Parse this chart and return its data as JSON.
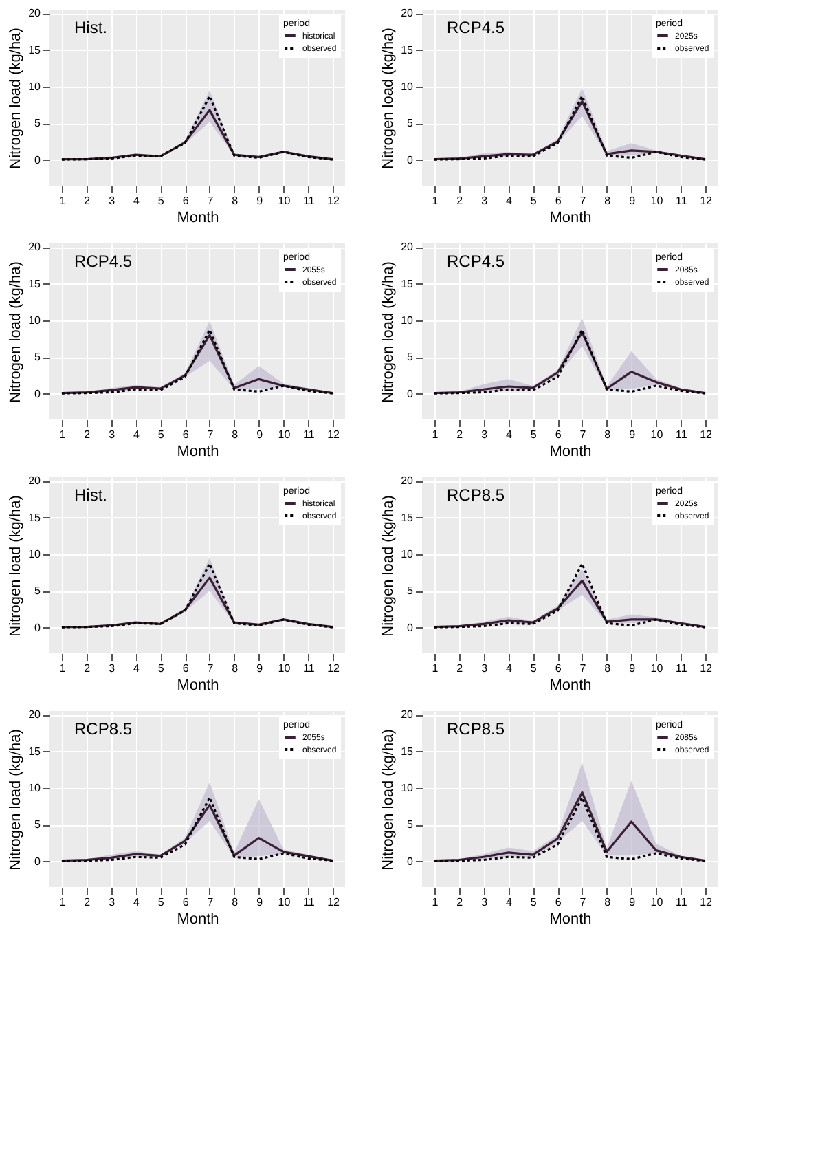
{
  "chart_data": [
    {
      "type": "line",
      "annotations": [
        "Hist."
      ],
      "xlabel": "Month",
      "ylabel": "Nitrogen load (kg/ha)",
      "legend_title": "period",
      "legend": "top right",
      "grid": true,
      "x": [
        1,
        2,
        3,
        4,
        5,
        6,
        7,
        8,
        9,
        10,
        11,
        12
      ],
      "xlim": [
        0.5,
        12.5
      ],
      "xticks": [
        1,
        2,
        3,
        4,
        5,
        6,
        7,
        8,
        9,
        10,
        11,
        12
      ],
      "ylim": [
        -3.5,
        20.5
      ],
      "yticks": [
        0,
        5,
        10,
        15,
        20
      ],
      "series": [
        {
          "name": "historical",
          "color": "#3a1f35",
          "line_style": "solid",
          "values": [
            0.1,
            0.1,
            0.3,
            0.7,
            0.5,
            2.4,
            6.8,
            0.7,
            0.4,
            1.1,
            0.5,
            0.1
          ],
          "lower": [
            0,
            0.1,
            0.2,
            0.6,
            0.4,
            2.2,
            5.2,
            0.6,
            0.3,
            1.0,
            0.4,
            0
          ],
          "upper": [
            0.1,
            0.2,
            0.4,
            0.8,
            0.6,
            2.6,
            9.5,
            0.8,
            0.5,
            1.2,
            0.6,
            0.1
          ]
        },
        {
          "name": "observed",
          "color": "#000000",
          "line_style": "dotted",
          "values": [
            0.05,
            0.1,
            0.2,
            0.6,
            0.5,
            2.3,
            8.7,
            0.6,
            0.3,
            1.1,
            0.4,
            0.05
          ]
        }
      ]
    },
    {
      "type": "line",
      "annotations": [
        "RCP4.5"
      ],
      "xlabel": "Month",
      "ylabel": "Nitrogen load (kg/ha)",
      "legend_title": "period",
      "legend": "top right",
      "grid": true,
      "x": [
        1,
        2,
        3,
        4,
        5,
        6,
        7,
        8,
        9,
        10,
        11,
        12
      ],
      "xlim": [
        0.5,
        12.5
      ],
      "xticks": [
        1,
        2,
        3,
        4,
        5,
        6,
        7,
        8,
        9,
        10,
        11,
        12
      ],
      "ylim": [
        -3.5,
        20.5
      ],
      "yticks": [
        0,
        5,
        10,
        15,
        20
      ],
      "series": [
        {
          "name": "2025s",
          "color": "#3a1f35",
          "line_style": "solid",
          "values": [
            0.1,
            0.2,
            0.5,
            0.8,
            0.7,
            2.5,
            8.0,
            0.8,
            1.3,
            1.1,
            0.6,
            0.1
          ],
          "lower": [
            0,
            0.1,
            0.3,
            0.5,
            0.5,
            2.3,
            6.0,
            0.6,
            0.6,
            0.9,
            0.5,
            0
          ],
          "upper": [
            0.2,
            0.3,
            0.9,
            1.1,
            0.8,
            2.8,
            9.8,
            1.2,
            2.3,
            1.3,
            0.7,
            0.2
          ]
        },
        {
          "name": "observed",
          "color": "#000000",
          "line_style": "dotted",
          "values": [
            0.05,
            0.1,
            0.2,
            0.6,
            0.5,
            2.3,
            8.7,
            0.6,
            0.3,
            1.1,
            0.4,
            0.05
          ]
        }
      ]
    },
    {
      "type": "line",
      "annotations": [
        "RCP4.5"
      ],
      "xlabel": "Month",
      "ylabel": "Nitrogen load (kg/ha)",
      "legend_title": "period",
      "legend": "top right",
      "grid": true,
      "x": [
        1,
        2,
        3,
        4,
        5,
        6,
        7,
        8,
        9,
        10,
        11,
        12
      ],
      "xlim": [
        0.5,
        12.5
      ],
      "xticks": [
        1,
        2,
        3,
        4,
        5,
        6,
        7,
        8,
        9,
        10,
        11,
        12
      ],
      "ylim": [
        -3.5,
        20.5
      ],
      "yticks": [
        0,
        5,
        10,
        15,
        20
      ],
      "series": [
        {
          "name": "2055s",
          "color": "#3a1f35",
          "line_style": "solid",
          "values": [
            0.1,
            0.2,
            0.5,
            0.9,
            0.7,
            2.5,
            8.0,
            0.8,
            2.0,
            1.1,
            0.6,
            0.1
          ],
          "lower": [
            0,
            0.1,
            0.3,
            0.6,
            0.6,
            2.3,
            4.5,
            0.6,
            0.6,
            0.9,
            0.5,
            0
          ],
          "upper": [
            0.2,
            0.3,
            0.8,
            1.2,
            0.9,
            2.8,
            9.9,
            1.2,
            3.8,
            1.4,
            0.8,
            0.2
          ]
        },
        {
          "name": "observed",
          "color": "#000000",
          "line_style": "dotted",
          "values": [
            0.05,
            0.1,
            0.2,
            0.6,
            0.5,
            2.3,
            8.7,
            0.6,
            0.3,
            1.1,
            0.4,
            0.05
          ]
        }
      ]
    },
    {
      "type": "line",
      "annotations": [
        "RCP4.5"
      ],
      "xlabel": "Month",
      "ylabel": "Nitrogen load (kg/ha)",
      "legend_title": "period",
      "legend": "top right",
      "grid": true,
      "x": [
        1,
        2,
        3,
        4,
        5,
        6,
        7,
        8,
        9,
        10,
        11,
        12
      ],
      "xlim": [
        0.5,
        12.5
      ],
      "xticks": [
        1,
        2,
        3,
        4,
        5,
        6,
        7,
        8,
        9,
        10,
        11,
        12
      ],
      "ylim": [
        -3.5,
        20.5
      ],
      "yticks": [
        0,
        5,
        10,
        15,
        20
      ],
      "series": [
        {
          "name": "2085s",
          "color": "#3a1f35",
          "line_style": "solid",
          "values": [
            0.1,
            0.2,
            0.6,
            1.0,
            0.8,
            2.9,
            8.4,
            0.7,
            3.0,
            1.6,
            0.6,
            0.1
          ],
          "lower": [
            0,
            0.1,
            0.3,
            0.4,
            0.6,
            2.5,
            6.5,
            0.5,
            0.7,
            1.2,
            0.5,
            0
          ],
          "upper": [
            0.2,
            0.3,
            1.3,
            2.0,
            1.1,
            3.2,
            10.3,
            1.0,
            5.8,
            2.0,
            0.8,
            0.2
          ]
        },
        {
          "name": "observed",
          "color": "#000000",
          "line_style": "dotted",
          "values": [
            0.05,
            0.1,
            0.2,
            0.6,
            0.5,
            2.3,
            8.7,
            0.6,
            0.3,
            1.1,
            0.4,
            0.05
          ]
        }
      ]
    },
    {
      "type": "line",
      "annotations": [
        "Hist."
      ],
      "xlabel": "Month",
      "ylabel": "Nitrogen load (kg/ha)",
      "legend_title": "period",
      "legend": "top right",
      "grid": true,
      "x": [
        1,
        2,
        3,
        4,
        5,
        6,
        7,
        8,
        9,
        10,
        11,
        12
      ],
      "xlim": [
        0.5,
        12.5
      ],
      "xticks": [
        1,
        2,
        3,
        4,
        5,
        6,
        7,
        8,
        9,
        10,
        11,
        12
      ],
      "ylim": [
        -3.5,
        20.5
      ],
      "yticks": [
        0,
        5,
        10,
        15,
        20
      ],
      "series": [
        {
          "name": "historical",
          "color": "#3a1f35",
          "line_style": "solid",
          "values": [
            0.1,
            0.1,
            0.3,
            0.7,
            0.5,
            2.4,
            6.8,
            0.7,
            0.4,
            1.1,
            0.5,
            0.1
          ],
          "lower": [
            0,
            0.1,
            0.2,
            0.6,
            0.4,
            2.2,
            5.0,
            0.6,
            0.3,
            1.0,
            0.4,
            0
          ],
          "upper": [
            0.1,
            0.2,
            0.4,
            0.8,
            0.6,
            2.6,
            9.5,
            0.8,
            0.5,
            1.3,
            0.6,
            0.1
          ]
        },
        {
          "name": "observed",
          "color": "#000000",
          "line_style": "dotted",
          "values": [
            0.05,
            0.1,
            0.2,
            0.6,
            0.5,
            2.3,
            8.7,
            0.6,
            0.3,
            1.1,
            0.4,
            0.05
          ]
        }
      ]
    },
    {
      "type": "line",
      "annotations": [
        "RCP8.5"
      ],
      "xlabel": "Month",
      "ylabel": "Nitrogen load (kg/ha)",
      "legend_title": "period",
      "legend": "top right",
      "grid": true,
      "x": [
        1,
        2,
        3,
        4,
        5,
        6,
        7,
        8,
        9,
        10,
        11,
        12
      ],
      "xlim": [
        0.5,
        12.5
      ],
      "xticks": [
        1,
        2,
        3,
        4,
        5,
        6,
        7,
        8,
        9,
        10,
        11,
        12
      ],
      "ylim": [
        -3.5,
        20.5
      ],
      "yticks": [
        0,
        5,
        10,
        15,
        20
      ],
      "series": [
        {
          "name": "2025s",
          "color": "#3a1f35",
          "line_style": "solid",
          "values": [
            0.1,
            0.2,
            0.5,
            1.0,
            0.7,
            2.6,
            6.4,
            0.8,
            1.1,
            1.1,
            0.6,
            0.1
          ],
          "lower": [
            0,
            0.1,
            0.3,
            0.6,
            0.5,
            2.3,
            4.5,
            0.6,
            0.6,
            0.9,
            0.5,
            0
          ],
          "upper": [
            0.2,
            0.3,
            0.8,
            1.5,
            0.9,
            3.0,
            8.0,
            1.1,
            1.8,
            1.4,
            0.7,
            0.2
          ]
        },
        {
          "name": "observed",
          "color": "#000000",
          "line_style": "dotted",
          "values": [
            0.05,
            0.1,
            0.2,
            0.6,
            0.5,
            2.3,
            8.7,
            0.6,
            0.3,
            1.1,
            0.4,
            0.05
          ]
        }
      ]
    },
    {
      "type": "line",
      "annotations": [
        "RCP8.5"
      ],
      "xlabel": "Month",
      "ylabel": "Nitrogen load (kg/ha)",
      "legend_title": "period",
      "legend": "top right",
      "grid": true,
      "x": [
        1,
        2,
        3,
        4,
        5,
        6,
        7,
        8,
        9,
        10,
        11,
        12
      ],
      "xlim": [
        0.5,
        12.5
      ],
      "xticks": [
        1,
        2,
        3,
        4,
        5,
        6,
        7,
        8,
        9,
        10,
        11,
        12
      ],
      "ylim": [
        -3.5,
        20.5
      ],
      "yticks": [
        0,
        5,
        10,
        15,
        20
      ],
      "series": [
        {
          "name": "2055s",
          "color": "#3a1f35",
          "line_style": "solid",
          "values": [
            0.1,
            0.2,
            0.5,
            1.0,
            0.75,
            2.8,
            7.7,
            0.8,
            3.2,
            1.3,
            0.7,
            0.1
          ],
          "lower": [
            0,
            0.1,
            0.3,
            0.6,
            0.6,
            2.5,
            5.5,
            0.5,
            0.7,
            1.0,
            0.5,
            0
          ],
          "upper": [
            0.2,
            0.3,
            0.9,
            1.4,
            0.9,
            3.2,
            10.8,
            1.2,
            8.5,
            1.6,
            0.9,
            0.2
          ]
        },
        {
          "name": "observed",
          "color": "#000000",
          "line_style": "dotted",
          "values": [
            0.1,
            0.1,
            0.2,
            0.6,
            0.5,
            2.3,
            8.7,
            0.6,
            0.3,
            1.1,
            0.4,
            0.1
          ]
        }
      ]
    },
    {
      "type": "line",
      "annotations": [
        "RCP8.5"
      ],
      "xlabel": "Month",
      "ylabel": "Nitrogen load (kg/ha)",
      "legend_title": "period",
      "legend": "top right",
      "grid": true,
      "x": [
        1,
        2,
        3,
        4,
        5,
        6,
        7,
        8,
        9,
        10,
        11,
        12
      ],
      "xlim": [
        0.5,
        12.5
      ],
      "xticks": [
        1,
        2,
        3,
        4,
        5,
        6,
        7,
        8,
        9,
        10,
        11,
        12
      ],
      "ylim": [
        -3.5,
        20.5
      ],
      "yticks": [
        0,
        5,
        10,
        15,
        20
      ],
      "series": [
        {
          "name": "2085s",
          "color": "#3a1f35",
          "line_style": "solid",
          "values": [
            0.1,
            0.2,
            0.6,
            1.2,
            0.9,
            3.1,
            9.4,
            1.3,
            5.4,
            1.5,
            0.6,
            0.1
          ],
          "lower": [
            0,
            0.1,
            0.3,
            0.7,
            0.6,
            2.6,
            5.5,
            0.8,
            0.8,
            1.1,
            0.4,
            0
          ],
          "upper": [
            0.2,
            0.3,
            1.0,
            1.9,
            1.4,
            3.6,
            13.5,
            1.8,
            11.0,
            2.4,
            0.8,
            0.2
          ]
        },
        {
          "name": "observed",
          "color": "#000000",
          "line_style": "dotted",
          "values": [
            0.05,
            0.1,
            0.2,
            0.6,
            0.5,
            2.3,
            8.7,
            0.6,
            0.3,
            1.1,
            0.4,
            0.05
          ]
        }
      ]
    }
  ]
}
